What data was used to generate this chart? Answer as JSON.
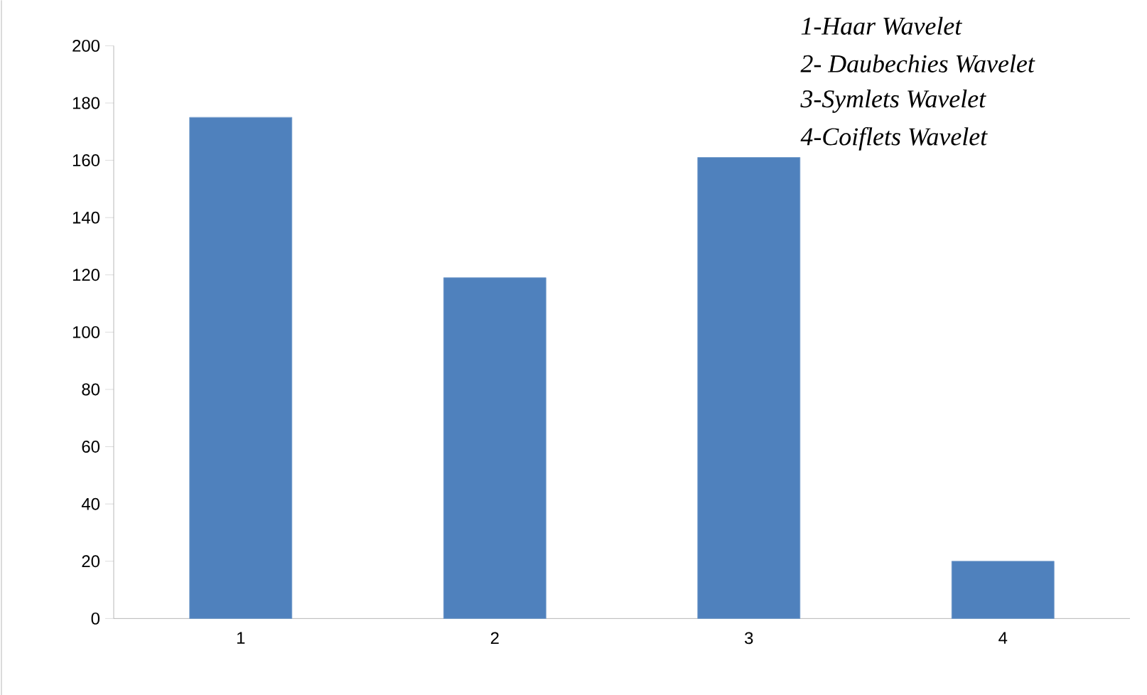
{
  "chart_data": {
    "type": "bar",
    "categories": [
      "1",
      "2",
      "3",
      "4"
    ],
    "values": [
      175,
      119,
      161,
      20
    ],
    "color": "#4f81bd",
    "ylim": [
      0,
      200
    ],
    "yticks": [
      0,
      20,
      40,
      60,
      80,
      100,
      120,
      140,
      160,
      180,
      200
    ],
    "grid": false,
    "annotations": [
      "1-Haar Wavelet",
      "2- Daubechies Wavelet",
      "3-Symlets Wavelet",
      "4-Coiflets Wavelet"
    ]
  }
}
